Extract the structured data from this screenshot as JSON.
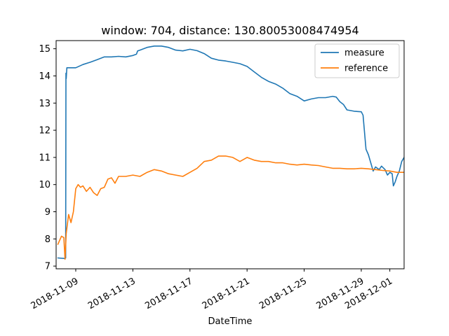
{
  "chart_data": {
    "type": "line",
    "title": "window: 704, distance: 130.80053008474954",
    "xlabel": "DateTime",
    "ylabel": "",
    "x_ticks": [
      "2018-11-09",
      "2018-11-13",
      "2018-11-17",
      "2018-11-21",
      "2018-11-25",
      "2018-11-29",
      "2018-12-01"
    ],
    "y_ticks": [
      7,
      8,
      9,
      10,
      11,
      12,
      13,
      14,
      15
    ],
    "xlim": [
      "2018-11-07T15:00",
      "2018-12-02T00:00"
    ],
    "ylim": [
      6.9,
      15.3
    ],
    "grid": false,
    "legend_position": "top-right",
    "series": [
      {
        "name": "measure",
        "color": "#1f77b4",
        "points": [
          [
            "2018-11-07T18:00",
            7.3
          ],
          [
            "2018-11-08T06:00",
            7.28
          ],
          [
            "2018-11-08T07:00",
            7.3
          ],
          [
            "2018-11-08T07:30",
            14.1
          ],
          [
            "2018-11-08T08:00",
            13.9
          ],
          [
            "2018-11-08T09:00",
            14.3
          ],
          [
            "2018-11-08T18:00",
            14.3
          ],
          [
            "2018-11-09T00:00",
            14.3
          ],
          [
            "2018-11-09T12:00",
            14.42
          ],
          [
            "2018-11-10T00:00",
            14.5
          ],
          [
            "2018-11-10T12:00",
            14.6
          ],
          [
            "2018-11-11T00:00",
            14.7
          ],
          [
            "2018-11-11T12:00",
            14.7
          ],
          [
            "2018-11-12T00:00",
            14.72
          ],
          [
            "2018-11-12T12:00",
            14.7
          ],
          [
            "2018-11-13T00:00",
            14.75
          ],
          [
            "2018-11-13T06:00",
            14.8
          ],
          [
            "2018-11-13T08:00",
            14.92
          ],
          [
            "2018-11-13T12:00",
            14.95
          ],
          [
            "2018-11-14T00:00",
            15.05
          ],
          [
            "2018-11-14T12:00",
            15.1
          ],
          [
            "2018-11-15T00:00",
            15.1
          ],
          [
            "2018-11-15T12:00",
            15.05
          ],
          [
            "2018-11-16T00:00",
            14.95
          ],
          [
            "2018-11-16T12:00",
            14.92
          ],
          [
            "2018-11-17T00:00",
            14.98
          ],
          [
            "2018-11-17T12:00",
            14.93
          ],
          [
            "2018-11-18T00:00",
            14.82
          ],
          [
            "2018-11-18T12:00",
            14.65
          ],
          [
            "2018-11-19T00:00",
            14.58
          ],
          [
            "2018-11-19T12:00",
            14.55
          ],
          [
            "2018-11-20T00:00",
            14.5
          ],
          [
            "2018-11-20T12:00",
            14.45
          ],
          [
            "2018-11-21T00:00",
            14.35
          ],
          [
            "2018-11-21T12:00",
            14.15
          ],
          [
            "2018-11-22T00:00",
            13.95
          ],
          [
            "2018-11-22T12:00",
            13.8
          ],
          [
            "2018-11-23T00:00",
            13.7
          ],
          [
            "2018-11-23T12:00",
            13.55
          ],
          [
            "2018-11-24T00:00",
            13.35
          ],
          [
            "2018-11-24T12:00",
            13.25
          ],
          [
            "2018-11-25T00:00",
            13.08
          ],
          [
            "2018-11-25T12:00",
            13.15
          ],
          [
            "2018-11-26T00:00",
            13.2
          ],
          [
            "2018-11-26T12:00",
            13.2
          ],
          [
            "2018-11-27T00:00",
            13.25
          ],
          [
            "2018-11-27T06:00",
            13.22
          ],
          [
            "2018-11-27T12:00",
            13.05
          ],
          [
            "2018-11-27T18:00",
            12.95
          ],
          [
            "2018-11-28T00:00",
            12.75
          ],
          [
            "2018-11-28T12:00",
            12.7
          ],
          [
            "2018-11-29T00:00",
            12.68
          ],
          [
            "2018-11-29T03:00",
            12.55
          ],
          [
            "2018-11-29T06:00",
            11.8
          ],
          [
            "2018-11-29T08:00",
            11.3
          ],
          [
            "2018-11-29T12:00",
            11.1
          ],
          [
            "2018-11-29T16:00",
            10.8
          ],
          [
            "2018-11-29T20:00",
            10.5
          ],
          [
            "2018-11-30T00:00",
            10.65
          ],
          [
            "2018-11-30T06:00",
            10.55
          ],
          [
            "2018-11-30T10:00",
            10.68
          ],
          [
            "2018-11-30T16:00",
            10.55
          ],
          [
            "2018-11-30T20:00",
            10.35
          ],
          [
            "2018-12-01T00:00",
            10.45
          ],
          [
            "2018-12-01T04:00",
            10.4
          ],
          [
            "2018-12-01T06:00",
            9.95
          ],
          [
            "2018-12-01T09:00",
            10.1
          ],
          [
            "2018-12-01T12:00",
            10.3
          ],
          [
            "2018-12-01T16:00",
            10.5
          ],
          [
            "2018-12-01T20:00",
            10.85
          ],
          [
            "2018-12-02T00:00",
            11.0
          ],
          [
            "2018-12-02T04:00",
            11.3
          ],
          [
            "2018-12-02T08:00",
            11.65
          ]
        ]
      },
      {
        "name": "reference",
        "color": "#ff7f0e",
        "points": [
          [
            "2018-11-07T18:00",
            7.8
          ],
          [
            "2018-11-08T00:00",
            8.1
          ],
          [
            "2018-11-08T04:00",
            8.05
          ],
          [
            "2018-11-08T06:00",
            7.25
          ],
          [
            "2018-11-08T08:00",
            8.2
          ],
          [
            "2018-11-08T12:00",
            8.9
          ],
          [
            "2018-11-08T16:00",
            8.6
          ],
          [
            "2018-11-08T20:00",
            9.0
          ],
          [
            "2018-11-09T00:00",
            9.85
          ],
          [
            "2018-11-09T04:00",
            10.0
          ],
          [
            "2018-11-09T08:00",
            9.9
          ],
          [
            "2018-11-09T12:00",
            9.95
          ],
          [
            "2018-11-09T18:00",
            9.75
          ],
          [
            "2018-11-10T00:00",
            9.9
          ],
          [
            "2018-11-10T06:00",
            9.7
          ],
          [
            "2018-11-10T12:00",
            9.6
          ],
          [
            "2018-11-10T18:00",
            9.85
          ],
          [
            "2018-11-11T00:00",
            9.9
          ],
          [
            "2018-11-11T06:00",
            10.2
          ],
          [
            "2018-11-11T12:00",
            10.25
          ],
          [
            "2018-11-11T18:00",
            10.05
          ],
          [
            "2018-11-12T00:00",
            10.3
          ],
          [
            "2018-11-12T12:00",
            10.3
          ],
          [
            "2018-11-13T00:00",
            10.35
          ],
          [
            "2018-11-13T12:00",
            10.3
          ],
          [
            "2018-11-14T00:00",
            10.45
          ],
          [
            "2018-11-14T12:00",
            10.55
          ],
          [
            "2018-11-15T00:00",
            10.5
          ],
          [
            "2018-11-15T12:00",
            10.4
          ],
          [
            "2018-11-16T00:00",
            10.35
          ],
          [
            "2018-11-16T12:00",
            10.3
          ],
          [
            "2018-11-17T00:00",
            10.45
          ],
          [
            "2018-11-17T12:00",
            10.6
          ],
          [
            "2018-11-18T00:00",
            10.85
          ],
          [
            "2018-11-18T12:00",
            10.9
          ],
          [
            "2018-11-19T00:00",
            11.05
          ],
          [
            "2018-11-19T12:00",
            11.05
          ],
          [
            "2018-11-20T00:00",
            11.0
          ],
          [
            "2018-11-20T12:00",
            10.85
          ],
          [
            "2018-11-21T00:00",
            11.0
          ],
          [
            "2018-11-21T12:00",
            10.9
          ],
          [
            "2018-11-22T00:00",
            10.85
          ],
          [
            "2018-11-22T12:00",
            10.85
          ],
          [
            "2018-11-23T00:00",
            10.8
          ],
          [
            "2018-11-23T12:00",
            10.8
          ],
          [
            "2018-11-24T00:00",
            10.75
          ],
          [
            "2018-11-24T12:00",
            10.72
          ],
          [
            "2018-11-25T00:00",
            10.75
          ],
          [
            "2018-11-25T12:00",
            10.72
          ],
          [
            "2018-11-26T00:00",
            10.7
          ],
          [
            "2018-11-26T12:00",
            10.65
          ],
          [
            "2018-11-27T00:00",
            10.6
          ],
          [
            "2018-11-27T12:00",
            10.6
          ],
          [
            "2018-11-28T00:00",
            10.58
          ],
          [
            "2018-11-28T12:00",
            10.58
          ],
          [
            "2018-11-29T00:00",
            10.6
          ],
          [
            "2018-11-29T12:00",
            10.58
          ],
          [
            "2018-11-30T00:00",
            10.55
          ],
          [
            "2018-11-30T12:00",
            10.52
          ],
          [
            "2018-12-01T00:00",
            10.5
          ],
          [
            "2018-12-01T12:00",
            10.45
          ],
          [
            "2018-12-02T00:00",
            10.45
          ],
          [
            "2018-12-02T08:00",
            10.42
          ]
        ]
      }
    ]
  }
}
